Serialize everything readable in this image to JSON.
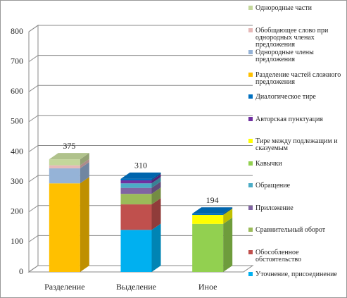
{
  "chart_data": {
    "type": "bar",
    "stacked": true,
    "categories": [
      "Разделение",
      "Выделение",
      "Иное"
    ],
    "totals": [
      375,
      310,
      194
    ],
    "ylim": [
      0,
      800
    ],
    "yticks": [
      0,
      100,
      200,
      300,
      400,
      500,
      600,
      700,
      800
    ],
    "grid": true,
    "series": [
      {
        "name": "Уточнение, присоединение",
        "color": "#00b0f0",
        "values": [
          0,
          140,
          0
        ]
      },
      {
        "name": "Обособленное обстоятельство",
        "color": "#c0504d",
        "values": [
          0,
          85,
          0
        ]
      },
      {
        "name": "Сравнительный оборот",
        "color": "#9bbb59",
        "values": [
          0,
          35,
          0
        ]
      },
      {
        "name": "Приложение",
        "color": "#8064a2",
        "values": [
          0,
          20,
          0
        ]
      },
      {
        "name": "Обращение",
        "color": "#4bacc6",
        "values": [
          0,
          15,
          0
        ]
      },
      {
        "name": "Кавычки",
        "color": "#92d050",
        "values": [
          0,
          0,
          160
        ]
      },
      {
        "name": "Тире между подлежащим и сказуемым",
        "color": "#ffff00",
        "values": [
          0,
          0,
          30
        ]
      },
      {
        "name": "Авторская пунктуация",
        "color": "#7030a0",
        "values": [
          0,
          10,
          0
        ]
      },
      {
        "name": "Диалогическое тире",
        "color": "#0070c0",
        "values": [
          0,
          5,
          4
        ]
      },
      {
        "name": "Разделение частей сложного предложения",
        "color": "#ffc000",
        "values": [
          295,
          0,
          0
        ]
      },
      {
        "name": "Однородные члены предложения",
        "color": "#95b3d7",
        "values": [
          50,
          0,
          0
        ]
      },
      {
        "name": "Обобщающее слово при однородных членах предложения",
        "color": "#e6b9b8",
        "values": [
          10,
          0,
          0
        ]
      },
      {
        "name": "Однородные части",
        "color": "#c4d79b",
        "values": [
          20,
          0,
          0
        ]
      }
    ]
  }
}
